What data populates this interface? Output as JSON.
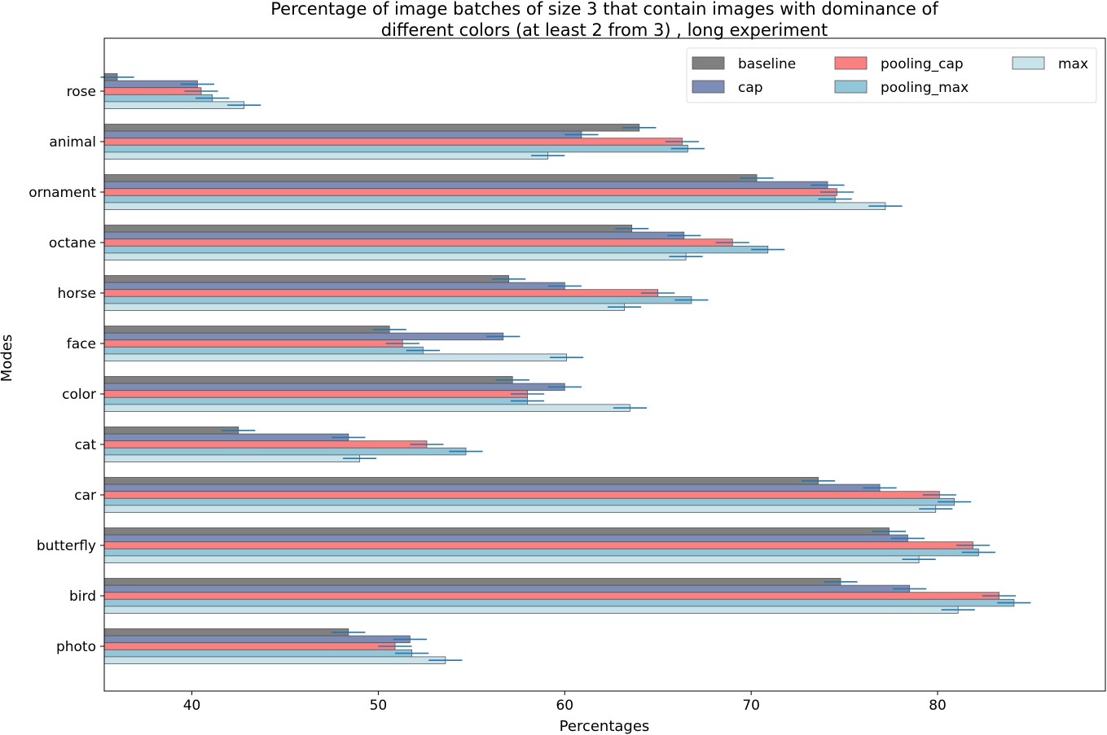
{
  "chart_data": {
    "type": "bar",
    "orientation": "horizontal",
    "title": [
      "Percentage of image batches of size 3 that contain images with dominance of",
      "different colors (at least 2 from 3) , long experiment"
    ],
    "xlabel": "Percentages",
    "ylabel": "Modes",
    "xlim": [
      35.3,
      89.0
    ],
    "xticks": [
      40,
      50,
      60,
      70,
      80
    ],
    "legend_position": "top-right",
    "categories": [
      "rose",
      "animal",
      "ornament",
      "octane",
      "horse",
      "face",
      "color",
      "cat",
      "car",
      "butterfly",
      "bird",
      "photo"
    ],
    "series": [
      {
        "name": "baseline",
        "color": "#808080",
        "values": [
          36.0,
          64.0,
          70.3,
          63.6,
          57.0,
          50.6,
          57.2,
          42.5,
          73.6,
          77.4,
          74.8,
          48.4
        ],
        "errors": [
          0.9,
          0.9,
          0.9,
          0.9,
          0.9,
          0.9,
          0.9,
          0.9,
          0.9,
          0.9,
          0.9,
          0.9
        ]
      },
      {
        "name": "cap",
        "color": "#7c8db8",
        "values": [
          40.3,
          60.9,
          74.1,
          66.4,
          60.0,
          56.7,
          60.0,
          48.4,
          76.9,
          78.4,
          78.5,
          51.7
        ],
        "errors": [
          0.9,
          0.9,
          0.9,
          0.9,
          0.9,
          0.9,
          0.9,
          0.9,
          0.9,
          0.9,
          0.9,
          0.9
        ]
      },
      {
        "name": "pooling_cap",
        "color": "#fc8080",
        "values": [
          40.5,
          66.3,
          74.6,
          69.0,
          65.0,
          51.3,
          58.0,
          52.6,
          80.1,
          81.9,
          83.3,
          50.9
        ],
        "errors": [
          0.9,
          0.9,
          0.9,
          0.9,
          0.9,
          0.9,
          0.9,
          0.9,
          0.9,
          0.9,
          0.9,
          0.9
        ]
      },
      {
        "name": "pooling_max",
        "color": "#91c7d9",
        "values": [
          41.1,
          66.6,
          74.5,
          70.9,
          66.8,
          52.4,
          58.0,
          54.7,
          80.9,
          82.2,
          84.1,
          51.8
        ],
        "errors": [
          0.9,
          0.9,
          0.9,
          0.9,
          0.9,
          0.9,
          0.9,
          0.9,
          0.9,
          0.9,
          0.9,
          0.9
        ]
      },
      {
        "name": "max",
        "color": "#c8e3ea",
        "values": [
          42.8,
          59.1,
          77.2,
          66.5,
          63.2,
          60.1,
          63.5,
          49.0,
          79.9,
          79.0,
          81.1,
          53.6
        ],
        "errors": [
          0.9,
          0.9,
          0.9,
          0.9,
          0.9,
          0.9,
          0.9,
          0.9,
          0.9,
          0.9,
          0.9,
          0.9
        ]
      }
    ],
    "error_bar_color": "#1f77b4",
    "bar_edge_color": "#555555"
  }
}
